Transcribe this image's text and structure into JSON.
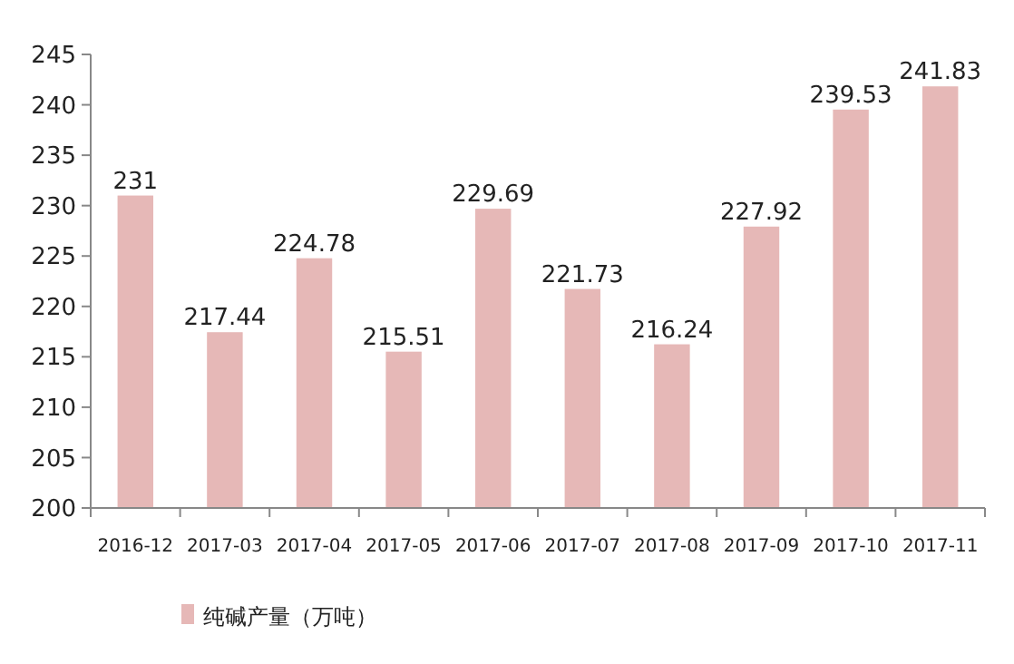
{
  "chart_data": {
    "type": "bar",
    "categories": [
      "2016-12",
      "2017-03",
      "2017-04",
      "2017-05",
      "2017-06",
      "2017-07",
      "2017-08",
      "2017-09",
      "2017-10",
      "2017-11"
    ],
    "series": [
      {
        "name": "纯碱产量（万吨）",
        "color": "#e6b8b7",
        "values": [
          231,
          217.44,
          224.78,
          215.51,
          229.69,
          221.73,
          216.24,
          227.92,
          239.53,
          241.83
        ]
      }
    ],
    "ylim": [
      200,
      245
    ],
    "yticks": [
      200,
      205,
      210,
      215,
      220,
      225,
      230,
      235,
      240,
      245
    ],
    "data_labels": true,
    "legend": "bottom left",
    "grid": false
  }
}
